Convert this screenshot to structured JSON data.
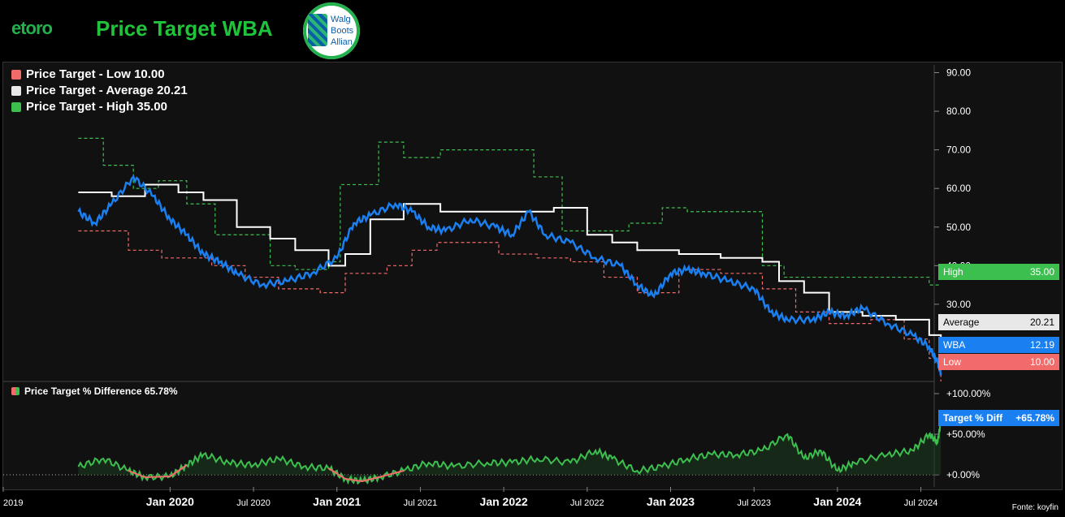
{
  "header": {
    "logo_text": "etoro",
    "title": "Price Target WBA",
    "badge_text": "Walg\nBoots\nAllian"
  },
  "legend": {
    "low": "Price Target - Low 10.00",
    "average": "Price Target - Average 20.21",
    "high": "Price Target - High 35.00"
  },
  "legend2": {
    "diff": "Price Target % Difference 65.78%"
  },
  "tags": {
    "high": {
      "label": "High",
      "value": "35.00",
      "color": "#3dbf4f"
    },
    "average": {
      "label": "Average",
      "value": "20.21",
      "color": "#e8e8e8"
    },
    "wba": {
      "label": "WBA",
      "value": "12.19",
      "color": "#1a7ff0"
    },
    "low": {
      "label": "Low",
      "value": "10.00",
      "color": "#f26b6b"
    },
    "diff": {
      "label": "Target % Diff",
      "value": "+65.78%",
      "color": "#1a7ff0"
    }
  },
  "source": "Fonte: koyfin",
  "colors": {
    "low": "#f26b6b",
    "average": "#ffffff",
    "high": "#3dbf4f",
    "price": "#1a7ff0",
    "diff": "#3dbf4f",
    "diff_neg": "#f26b6b"
  },
  "chart_data": [
    {
      "type": "line",
      "title": "",
      "x_ticks": [
        "2019",
        "Jan 2020",
        "Jul 2020",
        "Jan 2021",
        "Jul 2021",
        "Jan 2022",
        "Jul 2022",
        "Jan 2023",
        "Jul 2023",
        "Jan 2024",
        "Jul 2024"
      ],
      "y_ticks": [
        "30.00",
        "40.00",
        "50.00",
        "60.00",
        "70.00",
        "80.00",
        "90.00"
      ],
      "ylim": [
        10,
        92
      ],
      "series": [
        {
          "name": "Price Target - High",
          "x": [
            2019.45,
            2019.6,
            2019.78,
            2019.93,
            2020.1,
            2020.27,
            2020.6,
            2020.75,
            2020.95,
            2021.02,
            2021.25,
            2021.4,
            2021.62,
            2021.97,
            2022.18,
            2022.35,
            2022.6,
            2022.75,
            2022.95,
            2023.1,
            2023.3,
            2023.55,
            2023.68,
            2024.4,
            2024.55,
            2024.62
          ],
          "values": [
            73,
            66,
            60,
            62,
            56,
            48,
            40,
            39,
            41,
            61,
            72,
            68,
            70,
            70,
            63,
            49,
            49,
            51,
            55,
            54,
            54,
            40,
            37,
            37,
            35,
            35
          ]
        },
        {
          "name": "Price Target - Average",
          "x": [
            2019.45,
            2019.65,
            2019.85,
            2020.05,
            2020.2,
            2020.4,
            2020.6,
            2020.75,
            2020.95,
            2021.05,
            2021.2,
            2021.4,
            2021.62,
            2021.8,
            2022.05,
            2022.3,
            2022.5,
            2022.65,
            2022.8,
            2023.05,
            2023.3,
            2023.55,
            2023.65,
            2023.8,
            2023.95,
            2024.15,
            2024.35,
            2024.55,
            2024.62
          ],
          "values": [
            59,
            58,
            61,
            59,
            57,
            50,
            47,
            44,
            40,
            43,
            52,
            56,
            54,
            54,
            54,
            55,
            48,
            46,
            44,
            43,
            42,
            41,
            36,
            33,
            28,
            27,
            26,
            22,
            20.21
          ]
        },
        {
          "name": "Price Target - Low",
          "x": [
            2019.45,
            2019.75,
            2019.95,
            2020.25,
            2020.45,
            2020.65,
            2020.9,
            2021.05,
            2021.3,
            2021.45,
            2021.6,
            2021.97,
            2022.2,
            2022.4,
            2022.6,
            2022.8,
            2023.05,
            2023.3,
            2023.55,
            2023.75,
            2023.95,
            2024.2,
            2024.4,
            2024.55,
            2024.62
          ],
          "values": [
            49,
            44,
            42,
            40,
            37,
            34,
            33,
            38,
            40,
            44,
            46,
            43,
            42,
            41,
            37,
            33,
            39,
            38,
            34,
            28,
            25,
            26,
            21,
            16,
            10
          ]
        },
        {
          "name": "WBA",
          "x": [
            2019.45,
            2019.55,
            2019.65,
            2019.78,
            2019.9,
            2020.0,
            2020.1,
            2020.2,
            2020.3,
            2020.4,
            2020.55,
            2020.7,
            2020.85,
            2021.0,
            2021.1,
            2021.2,
            2021.35,
            2021.45,
            2021.55,
            2021.65,
            2021.8,
            2021.95,
            2022.05,
            2022.15,
            2022.25,
            2022.4,
            2022.55,
            2022.7,
            2022.8,
            2022.9,
            2023.0,
            2023.1,
            2023.2,
            2023.35,
            2023.5,
            2023.6,
            2023.7,
            2023.85,
            2023.95,
            2024.05,
            2024.15,
            2024.3,
            2024.45,
            2024.55,
            2024.6,
            2024.62
          ],
          "values": [
            54,
            51,
            56,
            63,
            58,
            52,
            48,
            43,
            41,
            38,
            35,
            36,
            38,
            42,
            51,
            53,
            56,
            54,
            50,
            49,
            52,
            50,
            48,
            54,
            48,
            46,
            42,
            40,
            35,
            32,
            38,
            39,
            38,
            36,
            34,
            28,
            26,
            26,
            28,
            27,
            29,
            25,
            22,
            19,
            15,
            12.19
          ]
        }
      ]
    },
    {
      "type": "area",
      "title": "Price Target % Difference 65.78%",
      "y_ticks": [
        "+0.00%",
        "+50.00%",
        "+100.00%"
      ],
      "ylim": [
        -15,
        110
      ],
      "series": [
        {
          "name": "Price Target % Difference",
          "x": [
            2019.45,
            2019.6,
            2019.75,
            2019.85,
            2020.0,
            2020.1,
            2020.2,
            2020.35,
            2020.5,
            2020.65,
            2020.8,
            2020.95,
            2021.05,
            2021.15,
            2021.25,
            2021.4,
            2021.55,
            2021.7,
            2021.9,
            2022.05,
            2022.2,
            2022.4,
            2022.55,
            2022.65,
            2022.8,
            2022.95,
            2023.1,
            2023.25,
            2023.4,
            2023.55,
            2023.7,
            2023.8,
            2023.9,
            2024.0,
            2024.1,
            2024.3,
            2024.45,
            2024.55,
            2024.6,
            2024.62
          ],
          "values": [
            10,
            20,
            5,
            -3,
            -2,
            12,
            25,
            15,
            12,
            20,
            10,
            8,
            -5,
            -8,
            -3,
            5,
            15,
            10,
            15,
            15,
            20,
            15,
            30,
            20,
            5,
            10,
            20,
            25,
            25,
            30,
            50,
            20,
            30,
            5,
            15,
            25,
            30,
            50,
            40,
            65.78
          ]
        }
      ]
    }
  ]
}
